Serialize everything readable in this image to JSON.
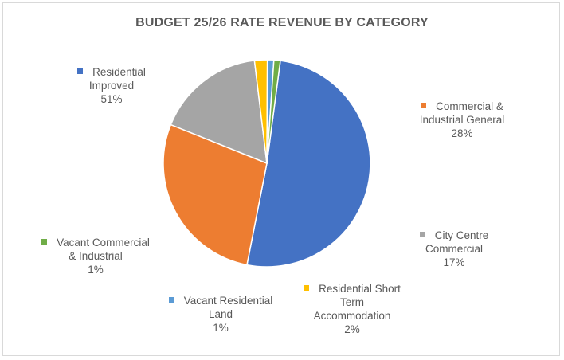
{
  "chart_data": {
    "type": "pie",
    "title": "BUDGET 25/26 RATE REVENUE BY CATEGORY",
    "slices": [
      {
        "label_lines": [
          "Residential",
          "Improved"
        ],
        "value": 51,
        "pct_label": "51%",
        "color": "#4472c4"
      },
      {
        "label_lines": [
          "Commercial &",
          "Industrial General"
        ],
        "value": 28,
        "pct_label": "28%",
        "color": "#ed7d31"
      },
      {
        "label_lines": [
          "City Centre",
          "Commercial"
        ],
        "value": 17,
        "pct_label": "17%",
        "color": "#a5a5a5"
      },
      {
        "label_lines": [
          "Residential Short",
          "Term",
          "Accommodation"
        ],
        "value": 2,
        "pct_label": "2%",
        "color": "#ffc000"
      },
      {
        "label_lines": [
          "Vacant Residential",
          "Land"
        ],
        "value": 1,
        "pct_label": "1%",
        "color": "#5b9bd5"
      },
      {
        "label_lines": [
          "Vacant Commercial",
          "& Industrial"
        ],
        "value": 1,
        "pct_label": "1%",
        "color": "#70ad47"
      }
    ],
    "start_angle_deg": 7.5,
    "direction": "clockwise"
  }
}
